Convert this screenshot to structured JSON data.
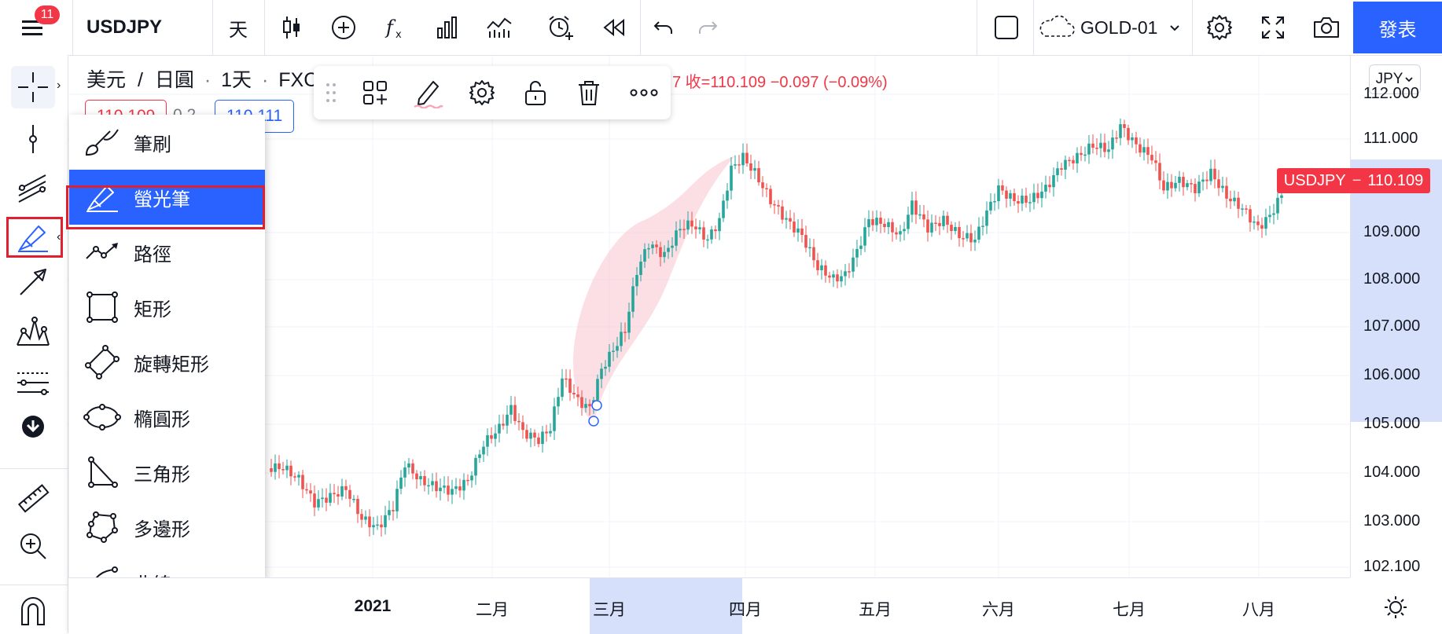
{
  "header": {
    "notification_count": "11",
    "symbol": "USDJPY",
    "interval": "天",
    "layout_name": "GOLD-01",
    "publish_label": "發表"
  },
  "legend": {
    "base": "美元",
    "slash": "/",
    "quote": "日圓",
    "interval": "1天",
    "source": "FXCM",
    "ohlc_tail": "7 收=110.109 −0.097 (−0.09%)",
    "bid": "110.109",
    "spread": "0.2",
    "ask": "110.111"
  },
  "tool_menu": {
    "items": [
      {
        "label": "筆刷",
        "icon": "brush-icon"
      },
      {
        "label": "螢光筆",
        "icon": "highlighter-icon"
      },
      {
        "label": "路徑",
        "icon": "path-icon"
      },
      {
        "label": "矩形",
        "icon": "rectangle-icon"
      },
      {
        "label": "旋轉矩形",
        "icon": "rotated-rectangle-icon"
      },
      {
        "label": "橢圓形",
        "icon": "ellipse-icon"
      },
      {
        "label": "三角形",
        "icon": "triangle-icon"
      },
      {
        "label": "多邊形",
        "icon": "polygon-icon"
      },
      {
        "label": "曲線",
        "icon": "curve-icon"
      }
    ],
    "active_index": 1
  },
  "price_axis": {
    "currency": "JPY",
    "ticks": [
      "112.000",
      "111.000",
      "109.000",
      "108.000",
      "107.000",
      "106.000",
      "105.000",
      "104.000",
      "103.000",
      "102.100"
    ],
    "current_symbol": "USDJPY",
    "current_price": "110.109",
    "accent_color": "#f23645",
    "highlight_color": "#d6e0fb"
  },
  "time_axis": {
    "ticks": [
      "2021",
      "二月",
      "三月",
      "四月",
      "五月",
      "六月",
      "七月",
      "八月"
    ]
  },
  "colors": {
    "up": "#26a69a",
    "down": "#ef5350",
    "highlighter": "#f7c5d0",
    "selection": "#2962ff"
  }
}
